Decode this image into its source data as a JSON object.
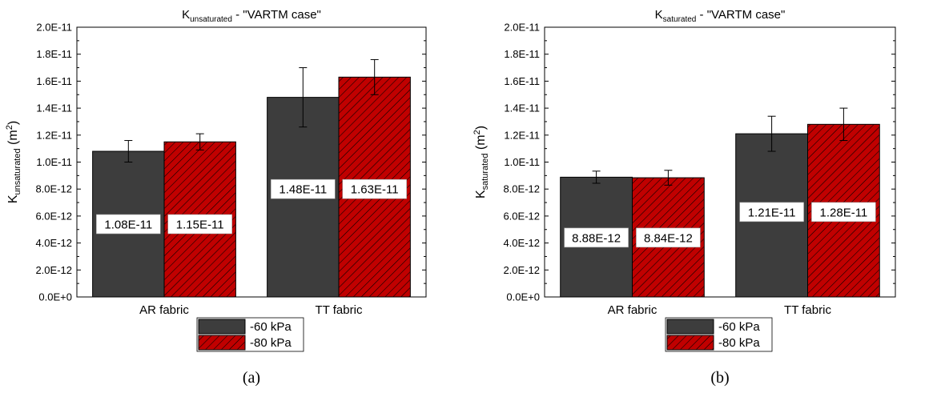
{
  "chart_data": [
    {
      "type": "bar",
      "panel_label": "(a)",
      "title": {
        "main": "K",
        "sub": "unsaturated",
        "rest": " - \"VARTM case\""
      },
      "ylabel": {
        "main": "K",
        "sub": "unsaturated",
        "rest": " (m",
        "sup": "2",
        "close": ")"
      },
      "xlabel": "",
      "categories": [
        "AR fabric",
        "TT fabric"
      ],
      "yticks": [
        "0.0E+0",
        "2.0E-12",
        "4.0E-12",
        "6.0E-12",
        "8.0E-12",
        "1.0E-11",
        "1.2E-11",
        "1.4E-11",
        "1.6E-11",
        "1.8E-11",
        "2.0E-11"
      ],
      "ylim": [
        0,
        2e-11
      ],
      "grid": false,
      "legend_position": "bottom-center",
      "series": [
        {
          "name": "-60 kPa",
          "fill": "#3d3d3d",
          "hatch": false,
          "values": [
            1.08e-11,
            1.48e-11
          ],
          "errors": [
            8e-13,
            2.2e-12
          ],
          "labels": [
            "1.08E-11",
            "1.48E-11"
          ]
        },
        {
          "name": "-80 kPa",
          "fill": "#c00000",
          "hatch": true,
          "values": [
            1.15e-11,
            1.63e-11
          ],
          "errors": [
            6e-13,
            1.3e-12
          ],
          "labels": [
            "1.15E-11",
            "1.63E-11"
          ]
        }
      ],
      "label_y": [
        5.4e-12,
        8e-12
      ]
    },
    {
      "type": "bar",
      "panel_label": "(b)",
      "title": {
        "main": "K",
        "sub": "saturated",
        "rest": " - \"VARTM case\""
      },
      "ylabel": {
        "main": "K",
        "sub": "saturated",
        "rest": " (m",
        "sup": "2",
        "close": ")"
      },
      "xlabel": "",
      "categories": [
        "AR fabric",
        "TT fabric"
      ],
      "yticks": [
        "0.0E+0",
        "2.0E-12",
        "4.0E-12",
        "6.0E-12",
        "8.0E-12",
        "1.0E-11",
        "1.2E-11",
        "1.4E-11",
        "1.6E-11",
        "1.8E-11",
        "2.0E-11"
      ],
      "ylim": [
        0,
        2e-11
      ],
      "grid": false,
      "legend_position": "bottom-center",
      "series": [
        {
          "name": "-60 kPa",
          "fill": "#3d3d3d",
          "hatch": false,
          "values": [
            8.88e-12,
            1.21e-11
          ],
          "errors": [
            4.5e-13,
            1.3e-12
          ],
          "labels": [
            "8.88E-12",
            "1.21E-11"
          ]
        },
        {
          "name": "-80 kPa",
          "fill": "#c00000",
          "hatch": true,
          "values": [
            8.84e-12,
            1.28e-11
          ],
          "errors": [
            5.5e-13,
            1.2e-12
          ],
          "labels": [
            "8.84E-12",
            "1.28E-11"
          ]
        }
      ],
      "label_y": [
        4.4e-12,
        6.3e-12
      ]
    }
  ]
}
